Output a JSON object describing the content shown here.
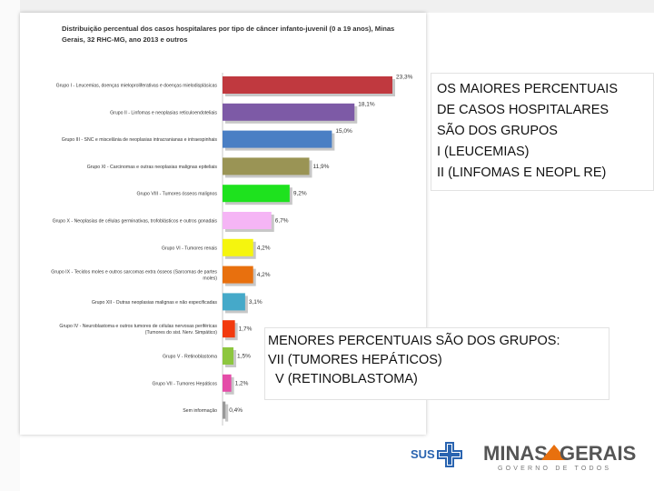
{
  "chart_data": {
    "type": "bar",
    "orientation": "horizontal",
    "title": "Distribuição percentual dos casos hospitalares por tipo de câncer infanto-juvenil (0 a 19 anos), Minas Gerais, 32 RHC-MG, ano 2013 e outros",
    "categories": [
      "Grupo I - Leucemias, doenças mieloproliferativas e doenças mielodisplásicas",
      "Grupo II - Linfomas e neoplasias reticuloendoteliais",
      "Grupo III - SNC e miscelânia de neoplasias intracranianas e intraespinhais",
      "Grupo XI - Carcinomas e outras neoplasias malignas epiteliais",
      "Grupo VIII - Tumores ósseos malignos",
      "Grupo X - Neoplasias de células germinativas, trofoblásticos e outros gonadais",
      "Grupo VI - Tumores renais",
      "Grupo IX - Tecidos moles e outros sarcomas extra ósseos (Sarcomas de partes moles)",
      "Grupo XII - Outras neoplasias malignas e não especificadas",
      "Grupo IV - Neuroblastoma e outros tumores de células nervosas periféricas (Tumores do sist. Nerv. Simpático)",
      "Grupo V - Retinoblastoma",
      "Grupo VII - Tumores Hepáticos",
      "Sem informação"
    ],
    "values": [
      23.3,
      18.1,
      15.0,
      11.9,
      9.2,
      6.7,
      4.2,
      4.2,
      3.1,
      1.7,
      1.5,
      1.2,
      0.4
    ],
    "value_labels": [
      "23,3%",
      "18,1%",
      "15,0%",
      "11,9%",
      "9,2%",
      "6,7%",
      "4,2%",
      "4,2%",
      "3,1%",
      "1,7%",
      "1,5%",
      "1,2%",
      "0,4%"
    ],
    "colors": [
      "#c0393f",
      "#7d5aa6",
      "#4a7fc4",
      "#9a9455",
      "#1ee21e",
      "#f5b5f5",
      "#f5f50e",
      "#e8700e",
      "#45a9c9",
      "#f23a0e",
      "#8dc63f",
      "#e44ca8",
      "#999999"
    ],
    "xlim": [
      0,
      24
    ],
    "grid": false,
    "legend": "none"
  },
  "callouts": {
    "top": {
      "lines": [
        "OS MAIORES PERCENTUAIS",
        "DE CASOS HOSPITALARES",
        "SÃO DOS GRUPOS",
        "I (LEUCEMIAS)",
        "II (LINFOMAS E NEOPL RE)"
      ]
    },
    "bottom": {
      "lines": [
        "MENORES PERCENTUAIS SÃO DOS GRUPOS:",
        "VII (TUMORES HEPÁTICOS)",
        "V (RETINOBLASTOMA)"
      ]
    }
  },
  "logos": {
    "sus": {
      "text": "SUS",
      "color": "#2a64b0"
    },
    "minas": {
      "word_left": "MINAS",
      "word_right": "GERAIS",
      "subtitle": "GOVERNO DE TODOS",
      "accent": "#e8700e"
    }
  }
}
